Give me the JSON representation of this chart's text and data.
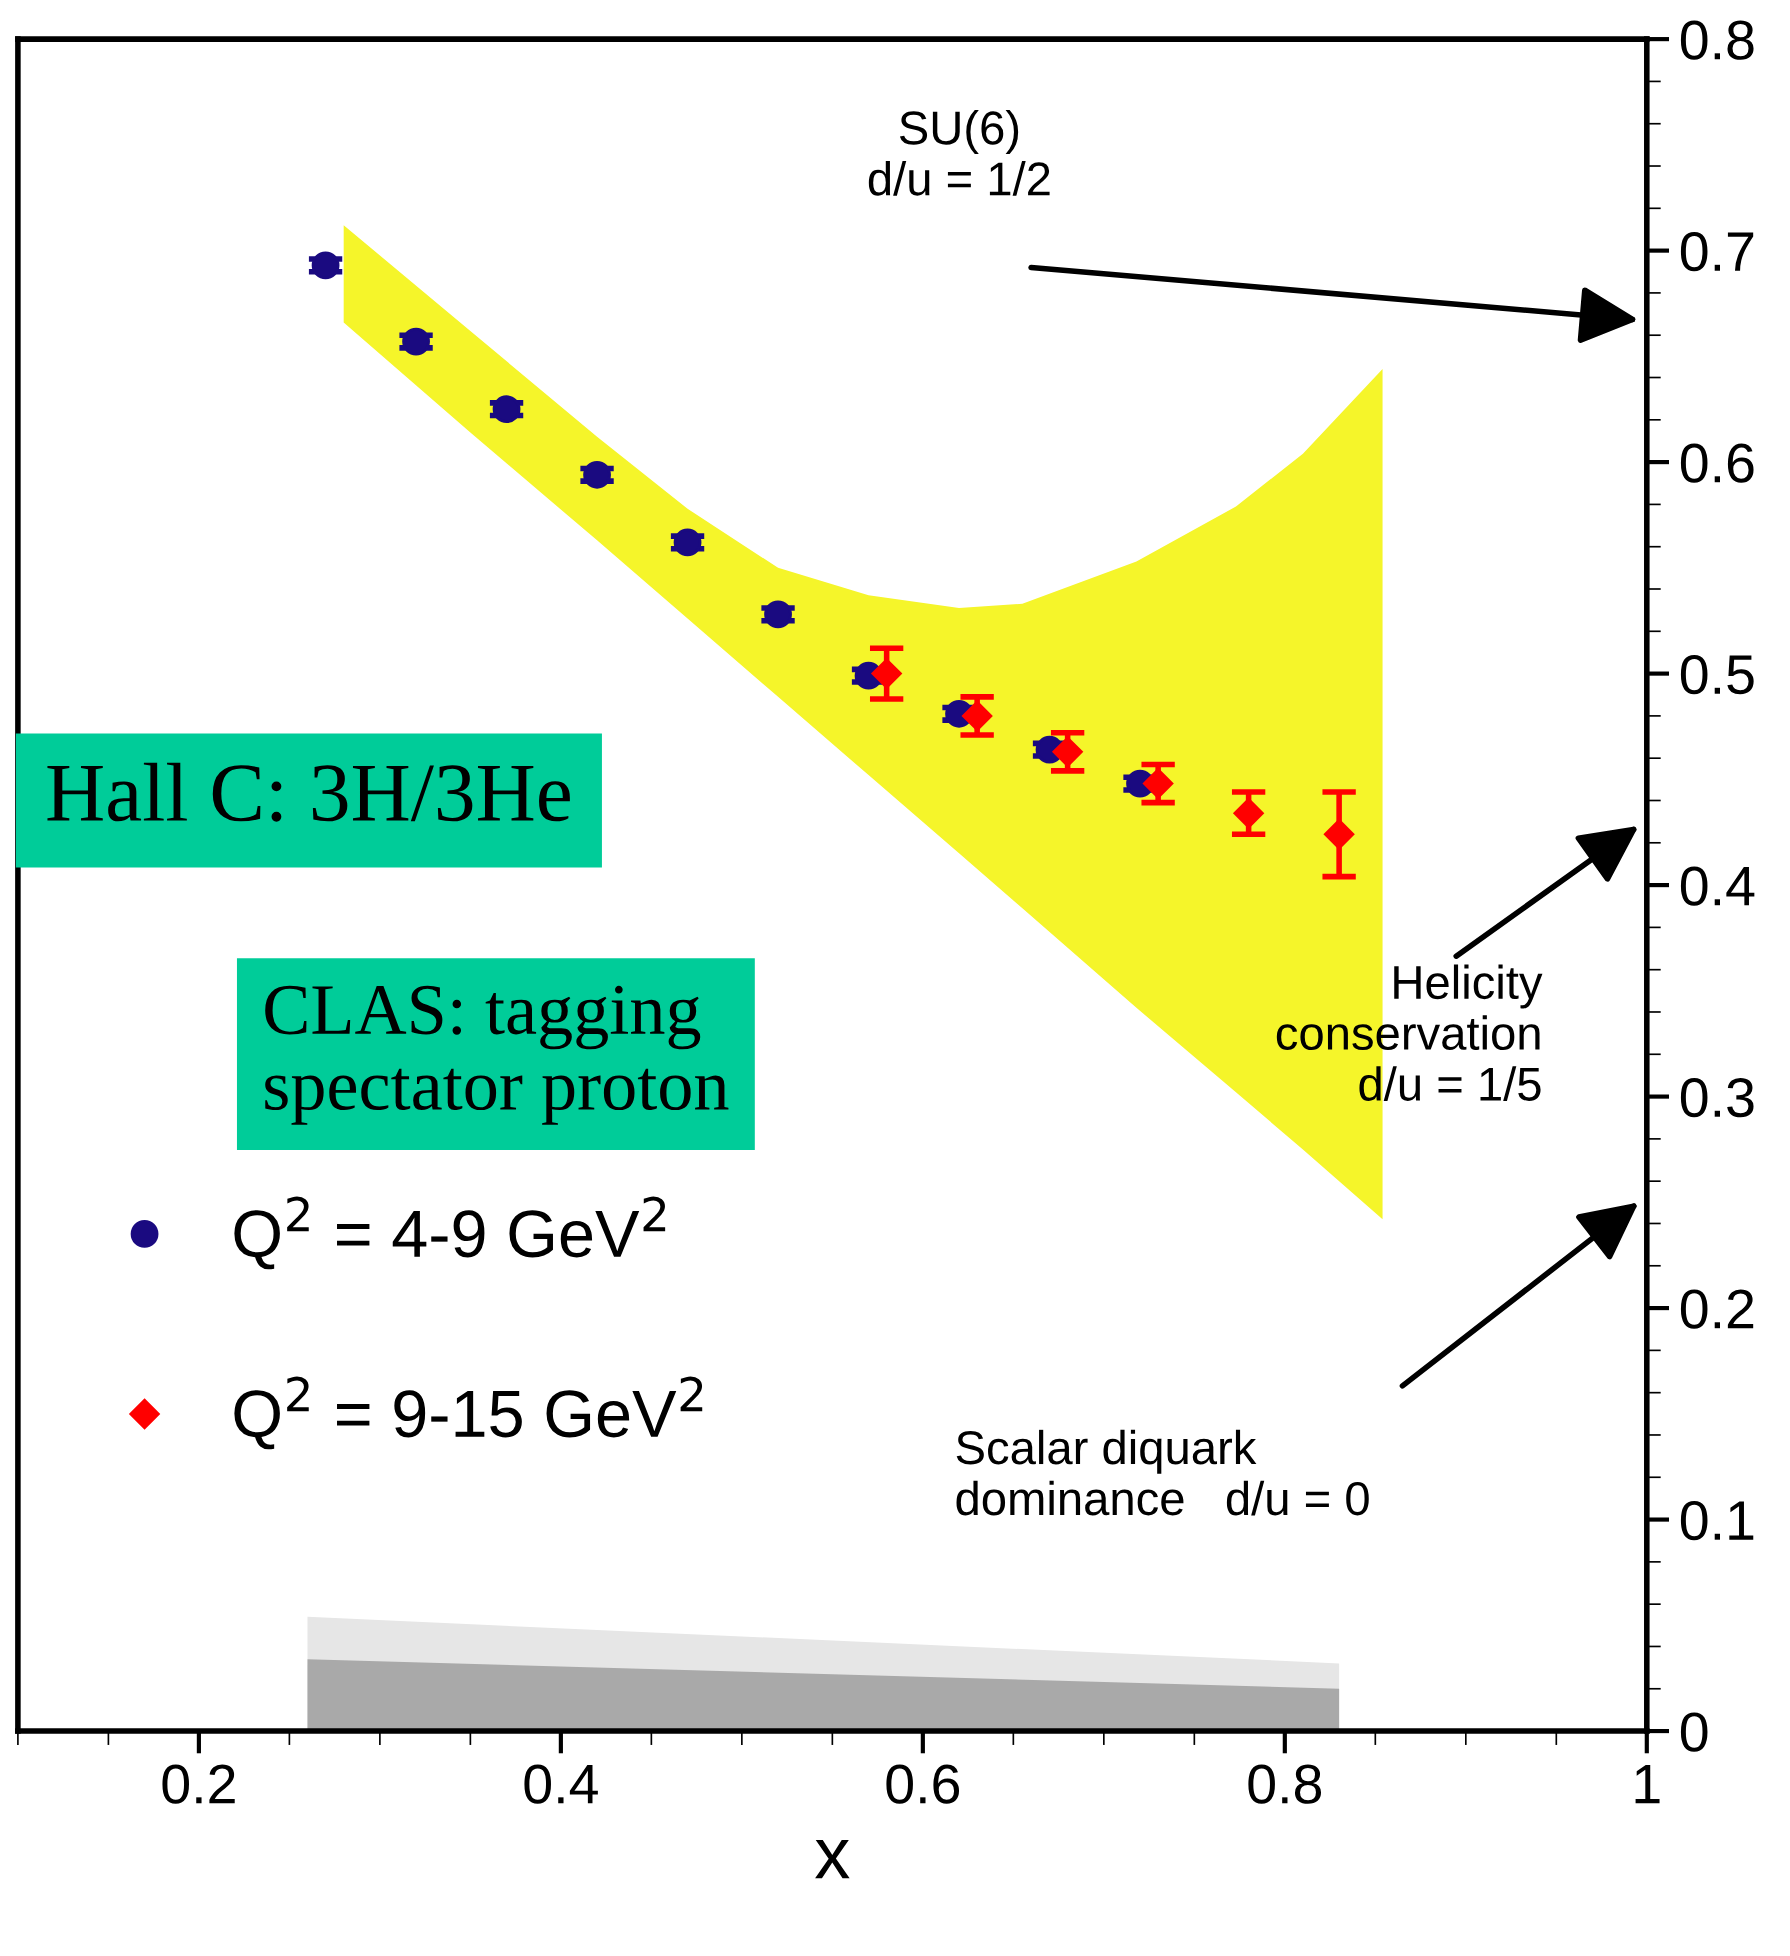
{
  "chart_data": {
    "type": "scatter",
    "xlabel": "x",
    "xlim": [
      0.1,
      1.0
    ],
    "ylim": [
      0,
      0.8
    ],
    "xticks": [
      0.2,
      0.4,
      0.6,
      0.8,
      {
        "value": 1.0,
        "label": "1"
      }
    ],
    "yticks": [
      {
        "value": 0,
        "label": "0"
      },
      0.1,
      0.2,
      0.3,
      0.4,
      0.5,
      0.6,
      0.7,
      0.8
    ],
    "grid": false,
    "legend": "bottom left",
    "series": [
      {
        "type": "area",
        "color": "#e6e6e6",
        "x": [
          0.26,
          0.83
        ],
        "values": [
          0.054,
          0.032
        ]
      },
      {
        "type": "area",
        "color": "#a9a9a9",
        "x": [
          0.26,
          0.83
        ],
        "values": [
          0.034,
          0.02
        ]
      },
      {
        "type": "area",
        "color": "#f5f52a",
        "x": [
          0.28,
          0.35,
          0.42,
          0.47,
          0.52,
          0.57,
          0.62,
          0.655,
          0.718,
          0.773,
          0.81,
          0.854
        ],
        "values": [
          null,
          null,
          null,
          null,
          null,
          null,
          null,
          null,
          null,
          null,
          null,
          null
        ],
        "lower": [
          0.666,
          0.614,
          0.563,
          0.526,
          0.489,
          0.452,
          0.415,
          0.389,
          0.342,
          0.302,
          0.275,
          0.242
        ],
        "upper": [
          0.712,
          0.662,
          0.612,
          0.578,
          0.55,
          0.537,
          0.531,
          0.533,
          0.553,
          0.579,
          0.604,
          0.644
        ]
      },
      {
        "name": "Q$^{2}$ = 4-9 GeV$^{2}$",
        "color": "#1a0a80",
        "marker": "circle",
        "x": [
          0.27,
          0.32,
          0.37,
          0.42,
          0.47,
          0.52,
          0.57,
          0.62,
          0.67,
          0.72
        ],
        "values": [
          0.693,
          0.657,
          0.625,
          0.594,
          0.562,
          0.528,
          0.499,
          0.481,
          0.464,
          0.448
        ],
        "errors": [
          0.003,
          0.003,
          0.003,
          0.003,
          0.003,
          0.003,
          0.003,
          0.003,
          0.003,
          0.003
        ]
      },
      {
        "name": "Q$^{2}$ = 9-15 GeV$^{2}$",
        "color": "#ff0000",
        "marker": "diamond",
        "x": [
          0.58,
          0.63,
          0.68,
          0.73,
          0.78,
          0.83
        ],
        "values": [
          0.5,
          0.48,
          0.463,
          0.448,
          0.434,
          0.424
        ],
        "errors": [
          0.012,
          0.009,
          0.009,
          0.009,
          0.01,
          0.02
        ]
      }
    ],
    "annotations": [
      "SU(6)\nd/u = 1/2",
      "Helicity\nconservation\nd/u = 1/5",
      "Scalar diquark\ndominance   d/u = 0",
      "Hall C: 3H/3He",
      "CLAS: tagging\nspectator proton"
    ]
  }
}
